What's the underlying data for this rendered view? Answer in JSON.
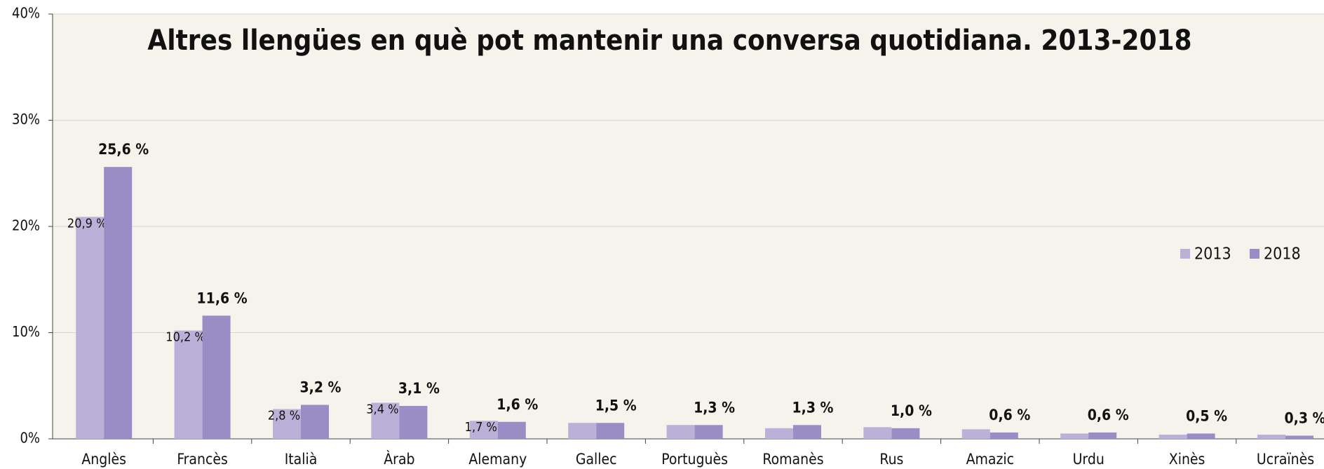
{
  "chart_data": {
    "type": "bar",
    "title": "Altres llengües en què pot mantenir una conversa quotidiana. 2013-2018",
    "categories": [
      "Anglès",
      "Francès",
      "Italià",
      "Àrab",
      "Alemany",
      "Gallec",
      "Portuguès",
      "Romanès",
      "Rus",
      "Amazic",
      "Urdu",
      "Xinès",
      "Ucraïnès"
    ],
    "series": [
      {
        "name": "2013",
        "color": "#b9b1d7",
        "values": [
          20.9,
          10.2,
          2.8,
          3.4,
          1.7,
          1.5,
          1.3,
          1.0,
          1.1,
          0.9,
          0.5,
          0.4,
          0.4
        ],
        "value_labels": [
          "20,9 %",
          "10,2 %",
          "2,8 %",
          "3,4 %",
          "1,7 %",
          null,
          null,
          null,
          null,
          null,
          null,
          null,
          null
        ]
      },
      {
        "name": "2018",
        "color": "#9a8cc5",
        "values": [
          25.6,
          11.6,
          3.2,
          3.1,
          1.6,
          1.5,
          1.3,
          1.3,
          1.0,
          0.6,
          0.6,
          0.5,
          0.3
        ],
        "value_labels": [
          "25,6 %",
          "11,6 %",
          "3,2 %",
          "3,1 %",
          "1,6 %",
          "1,5 %",
          "1,3 %",
          "1,3 %",
          "1,0 %",
          "0,6 %",
          "0,6 %",
          "0,5 %",
          "0,3 %"
        ]
      }
    ],
    "ylim": [
      0,
      40
    ],
    "yticks": [
      {
        "value": 0,
        "label": "0%"
      },
      {
        "value": 10,
        "label": "10%"
      },
      {
        "value": 20,
        "label": "20%"
      },
      {
        "value": 30,
        "label": "30%"
      },
      {
        "value": 40,
        "label": "40%"
      }
    ],
    "grid": true,
    "legend": "right"
  }
}
